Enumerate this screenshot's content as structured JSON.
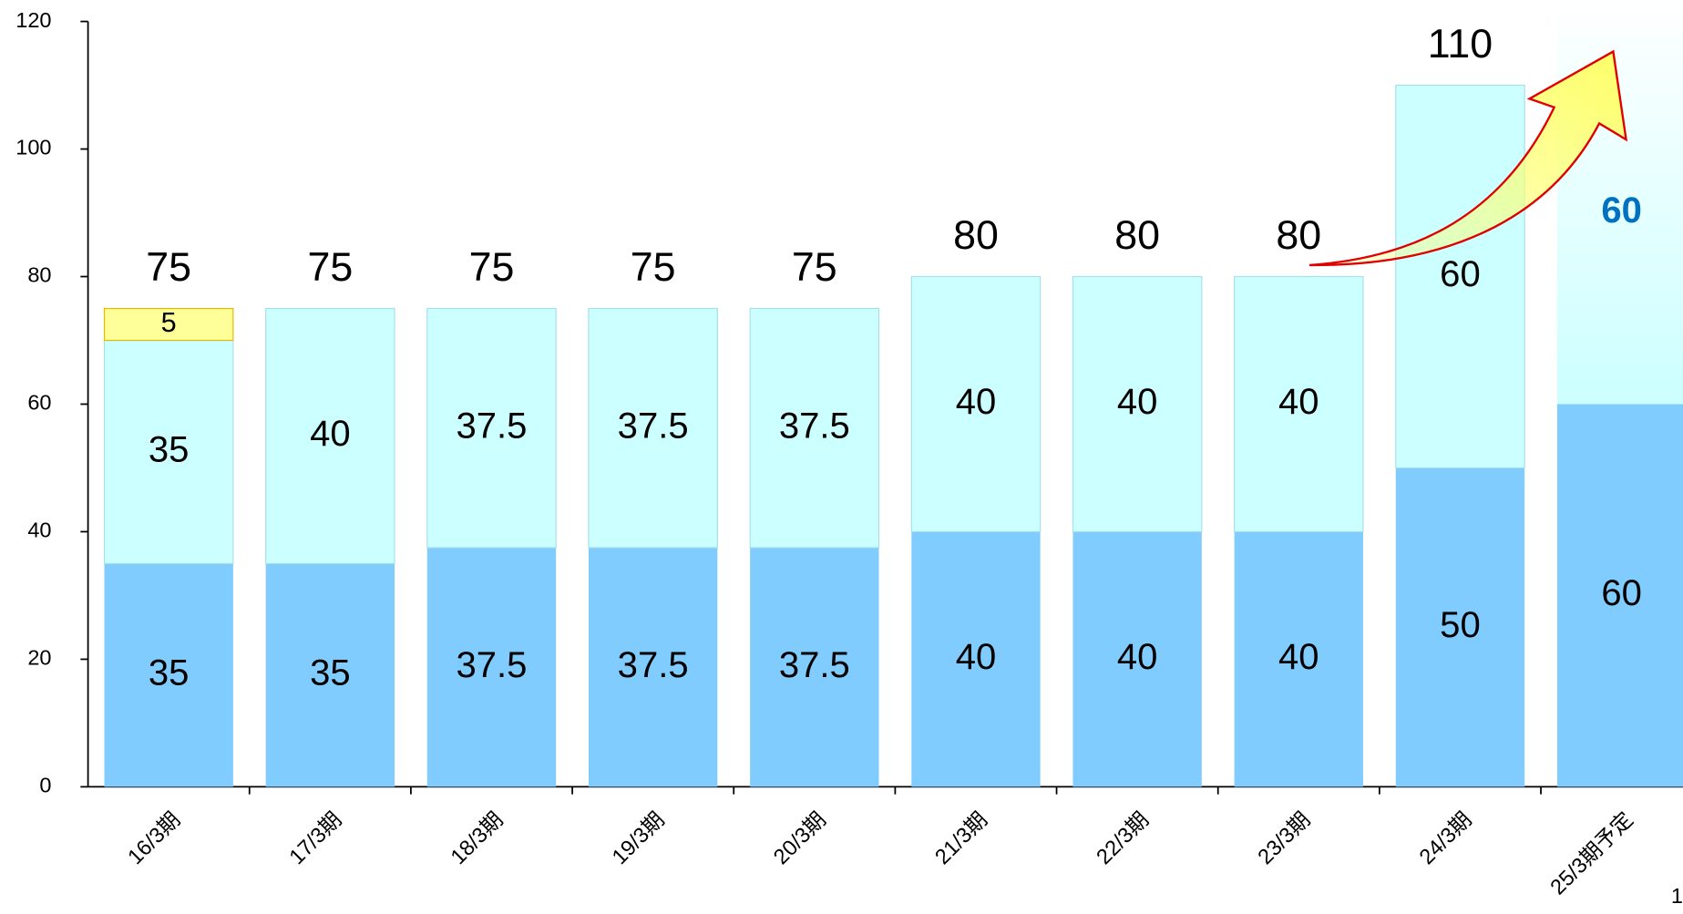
{
  "chart_data": {
    "type": "stacked_bar",
    "categories": [
      "16/3期",
      "17/3期",
      "18/3期",
      "19/3期",
      "20/3期",
      "21/3期",
      "22/3期",
      "23/3期",
      "24/3期",
      "25/3期予定"
    ],
    "series": [
      {
        "color": "#80ccff",
        "values": [
          35,
          35,
          37.5,
          37.5,
          37.5,
          40,
          40,
          40,
          50,
          60
        ]
      },
      {
        "color": "#ccffff",
        "values": [
          35,
          40,
          37.5,
          37.5,
          37.5,
          40,
          40,
          40,
          60,
          60
        ]
      },
      {
        "color": "#ffff99",
        "values": [
          5,
          null,
          null,
          null,
          null,
          null,
          null,
          null,
          null,
          null
        ]
      }
    ],
    "totals": [
      75,
      75,
      75,
      75,
      75,
      80,
      80,
      80,
      110,
      120
    ],
    "ylim": [
      0,
      120
    ],
    "yticks": [
      0,
      20,
      40,
      60,
      80,
      100,
      120
    ],
    "page_number": "1"
  }
}
